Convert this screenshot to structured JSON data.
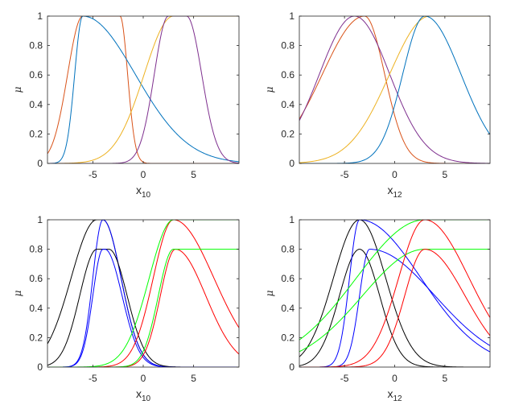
{
  "chart_data": [
    {
      "type": "line",
      "xlabel_base": "x",
      "xlabel_sub": "10",
      "ylabel": "μ",
      "xlim": [
        -9.5,
        9.5
      ],
      "ylim": [
        0,
        1
      ],
      "xticks": [
        -5,
        0,
        5
      ],
      "xtick_labels": [
        "-5",
        "0",
        "5"
      ],
      "yticks": [
        0,
        0.2,
        0.4,
        0.6,
        0.8,
        1
      ],
      "ytick_labels": [
        "0",
        "0.2",
        "0.4",
        "0.6",
        "0.8",
        "1"
      ],
      "series": [
        {
          "color": "#D95319",
          "kind": "gauss2",
          "c1": -6,
          "s1": 1.5,
          "c2": -2.3,
          "s2": 0.75,
          "h": 1
        },
        {
          "color": "#0072BD",
          "kind": "gauss2",
          "c1": -6,
          "s1": 0.8,
          "c2": -6,
          "s2": 5.2,
          "h": 1
        },
        {
          "color": "#EDB120",
          "kind": "gauss2",
          "c1": 3.0,
          "s1": 2.9,
          "c2": 9.5,
          "s2": 1,
          "h": 1
        },
        {
          "color": "#7E2F8E",
          "kind": "gauss2",
          "c1": 2.5,
          "s1": 1.4,
          "c2": 4.3,
          "s2": 1.5,
          "h": 1
        }
      ]
    },
    {
      "type": "line",
      "xlabel_base": "x",
      "xlabel_sub": "12",
      "ylabel": "μ",
      "xlim": [
        -9.5,
        9.5
      ],
      "ylim": [
        0,
        1
      ],
      "xticks": [
        -5,
        0,
        5
      ],
      "xtick_labels": [
        "-5",
        "0",
        "5"
      ],
      "yticks": [
        0,
        0.2,
        0.4,
        0.6,
        0.8,
        1
      ],
      "ytick_labels": [
        "0",
        "0.2",
        "0.4",
        "0.6",
        "0.8",
        "1"
      ],
      "series": [
        {
          "color": "#D95319",
          "kind": "gauss2",
          "c1": -3.0,
          "s1": 4.2,
          "c2": -3.0,
          "s2": 2.0,
          "h": 1
        },
        {
          "color": "#7E2F8E",
          "kind": "gauss2",
          "c1": -4.0,
          "s1": 3.5,
          "c2": -4.0,
          "s2": 3.5,
          "h": 1
        },
        {
          "color": "#EDB120",
          "kind": "gauss2",
          "c1": 3.5,
          "s1": 4.0,
          "c2": 9.5,
          "s2": 1,
          "h": 1
        },
        {
          "color": "#0072BD",
          "kind": "gauss2",
          "c1": 3.0,
          "s1": 2.2,
          "c2": 3.0,
          "s2": 3.6,
          "h": 1
        }
      ]
    },
    {
      "type": "line",
      "xlabel_base": "x",
      "xlabel_sub": "10",
      "ylabel": "μ",
      "xlim": [
        -9.5,
        9.5
      ],
      "ylim": [
        0,
        1
      ],
      "xticks": [
        -5,
        0,
        5
      ],
      "xtick_labels": [
        "-5",
        "0",
        "5"
      ],
      "yticks": [
        0,
        0.2,
        0.4,
        0.6,
        0.8,
        1
      ],
      "ytick_labels": [
        "0",
        "0.2",
        "0.4",
        "0.6",
        "0.8",
        "1"
      ],
      "series": [
        {
          "color": "#000000",
          "kind": "gauss2",
          "c1": -4.6,
          "s1": 2.55,
          "c2": -4.0,
          "s2": 1.8,
          "h": 1
        },
        {
          "color": "#0000FF",
          "kind": "gauss2",
          "c1": -4.0,
          "s1": 1,
          "c2": -4.0,
          "s2": 1.8,
          "h": 1
        },
        {
          "color": "#000000",
          "kind": "gauss2",
          "c1": -4.6,
          "s1": 1.7,
          "c2": -3.4,
          "s2": 1.8,
          "h": 0.8
        },
        {
          "color": "#0000FF",
          "kind": "gauss2",
          "c1": -4.0,
          "s1": 1,
          "c2": -3.8,
          "s2": 1.7,
          "h": 0.8
        },
        {
          "color": "#FF0000",
          "kind": "gauss2",
          "c1": 3.0,
          "s1": 2.0,
          "c2": 3.0,
          "s2": 4.0,
          "h": 1
        },
        {
          "color": "#FF0000",
          "kind": "gauss2",
          "c1": 3.2,
          "s1": 1.5,
          "c2": 3.2,
          "s2": 3.0,
          "h": 0.8
        },
        {
          "color": "#00FF00",
          "kind": "gauss2",
          "c1": 3.0,
          "s1": 2.4,
          "c2": 9.5,
          "s2": 1,
          "h": 1
        },
        {
          "color": "#00FF00",
          "kind": "gauss2",
          "c1": 3.0,
          "s1": 1.5,
          "c2": 9.5,
          "s2": 1,
          "h": 0.8
        }
      ]
    },
    {
      "type": "line",
      "xlabel_base": "x",
      "xlabel_sub": "12",
      "ylabel": "μ",
      "xlim": [
        -9.5,
        9.5
      ],
      "ylim": [
        0,
        1
      ],
      "xticks": [
        -5,
        0,
        5
      ],
      "xtick_labels": [
        "-5",
        "0",
        "5"
      ],
      "yticks": [
        0,
        0.2,
        0.4,
        0.6,
        0.8,
        1
      ],
      "ytick_labels": [
        "0",
        "0.2",
        "0.4",
        "0.6",
        "0.8",
        "1"
      ],
      "series": [
        {
          "color": "#000000",
          "kind": "gauss2",
          "c1": -3.5,
          "s1": 2.6,
          "c2": -3.5,
          "s2": 2.6,
          "h": 1
        },
        {
          "color": "#000000",
          "kind": "gauss2",
          "c1": -3.5,
          "s1": 2.0,
          "c2": -3.5,
          "s2": 2.0,
          "h": 0.8
        },
        {
          "color": "#0000FF",
          "kind": "gauss2",
          "c1": -3.5,
          "s1": 1,
          "c2": -3.5,
          "s2": 6.1,
          "h": 1
        },
        {
          "color": "#0000FF",
          "kind": "gauss2",
          "c1": -2.5,
          "s1": 1,
          "c2": -2.5,
          "s2": 6.5,
          "h": 0.8
        },
        {
          "color": "#00FF00",
          "kind": "gauss2",
          "c1": 3.0,
          "s1": 6.8,
          "c2": 9.5,
          "s2": 1,
          "h": 1
        },
        {
          "color": "#00FF00",
          "kind": "gauss2",
          "c1": 3.0,
          "s1": 6.2,
          "c2": 9.5,
          "s2": 1,
          "h": 0.8
        },
        {
          "color": "#FF0000",
          "kind": "gauss2",
          "c1": 3.0,
          "s1": 2.6,
          "c2": 3.0,
          "s2": 4.4,
          "h": 1
        },
        {
          "color": "#FF0000",
          "kind": "gauss2",
          "c1": 3.0,
          "s1": 2.0,
          "c2": 3.0,
          "s2": 4.0,
          "h": 0.8
        }
      ]
    }
  ]
}
